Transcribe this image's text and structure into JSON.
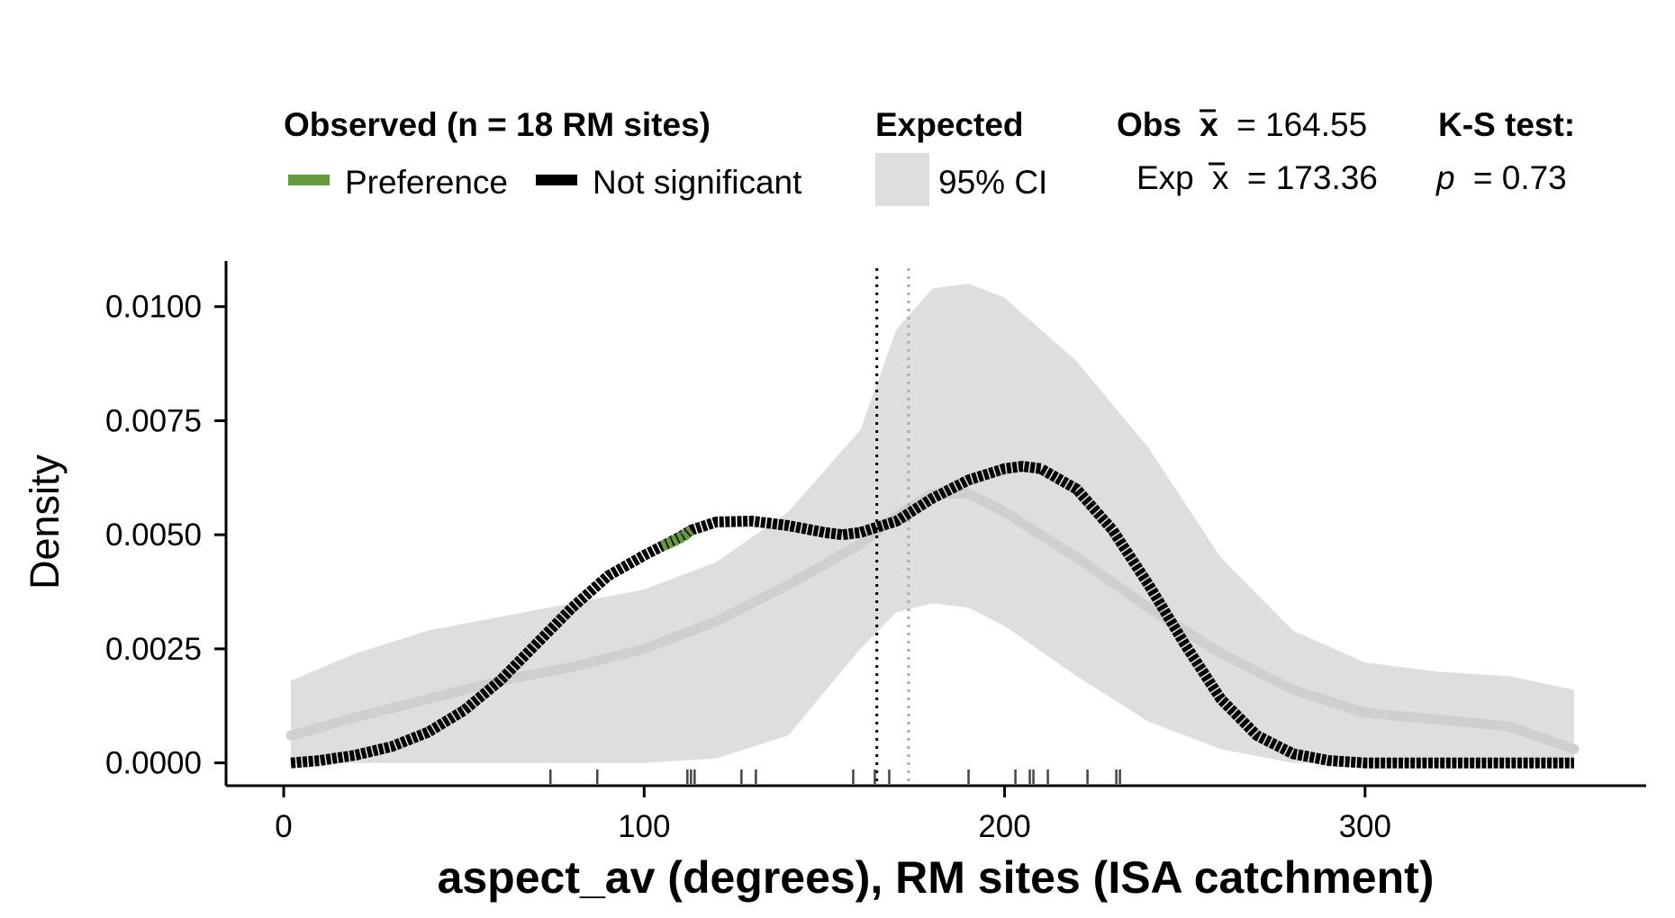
{
  "legend": {
    "observed_title": "Observed (n = 18 RM sites)",
    "preference_label": "Preference",
    "not_significant_label": "Not significant",
    "expected_title": "Expected",
    "ci_label": "95% CI",
    "obs_mean_prefix": "Obs",
    "obs_mean_value": "= 164.55",
    "exp_mean_prefix": "Exp",
    "exp_mean_value": "= 173.36",
    "ks_title": "K-S test:",
    "ks_p_symbol": "p",
    "ks_p_value": "= 0.73"
  },
  "chart_data": {
    "type": "line",
    "xlabel": "aspect_av (degrees), RM sites (ISA catchment)",
    "ylabel": "Density",
    "xlim": [
      -16,
      378
    ],
    "ylim": [
      -0.0005,
      0.011
    ],
    "x_ticks": [
      0,
      100,
      200,
      300
    ],
    "x_tick_labels": [
      "0",
      "100",
      "200",
      "300"
    ],
    "y_ticks": [
      0,
      0.0025,
      0.005,
      0.0075,
      0.01
    ],
    "y_tick_labels": [
      "0.0000",
      "0.0025",
      "0.0050",
      "0.0075",
      "0.0100"
    ],
    "grid": false,
    "legend_position": "top",
    "colors": {
      "observed": "#000000",
      "preference": "#66993a",
      "expected_mean": "#cfcfcf",
      "ci_band": "#dedede",
      "obs_mean_line": "#000000",
      "exp_mean_line": "#aaaaaa",
      "rug": "#444444"
    },
    "observed_mean": 164.55,
    "expected_mean": 173.36,
    "series": [
      {
        "name": "Observed",
        "role": "observed_density",
        "x": [
          2,
          10,
          20,
          30,
          40,
          50,
          60,
          70,
          80,
          90,
          100,
          105,
          110,
          113,
          120,
          130,
          140,
          150,
          155,
          160,
          170,
          180,
          190,
          200,
          205,
          210,
          220,
          230,
          240,
          250,
          260,
          270,
          280,
          290,
          300,
          310,
          320,
          330,
          340,
          350,
          358
        ],
        "y": [
          0.0,
          5e-05,
          0.00017,
          0.00036,
          0.00067,
          0.00115,
          0.0018,
          0.0026,
          0.0034,
          0.0041,
          0.00455,
          0.00475,
          0.00495,
          0.0051,
          0.00528,
          0.0053,
          0.0052,
          0.00505,
          0.005,
          0.00505,
          0.0053,
          0.0058,
          0.0062,
          0.00645,
          0.0065,
          0.00645,
          0.006,
          0.0051,
          0.0039,
          0.0026,
          0.0014,
          0.0006,
          0.0002,
          5e-05,
          0.0,
          0.0,
          0.0,
          0.0,
          0.0,
          0.0,
          0.0
        ]
      },
      {
        "name": "Preference",
        "role": "preference_segment",
        "x": [
          105,
          108,
          111,
          113
        ],
        "y": [
          0.00475,
          0.00485,
          0.00497,
          0.0051
        ]
      },
      {
        "name": "Expected",
        "role": "expected_mean_density",
        "x": [
          2,
          20,
          40,
          60,
          80,
          100,
          120,
          140,
          160,
          170,
          180,
          190,
          200,
          220,
          240,
          260,
          280,
          300,
          320,
          340,
          358
        ],
        "y": [
          0.0006,
          0.001,
          0.0014,
          0.0018,
          0.0021,
          0.0025,
          0.0031,
          0.0039,
          0.0048,
          0.0054,
          0.0059,
          0.0059,
          0.0055,
          0.0045,
          0.0034,
          0.0024,
          0.0016,
          0.0011,
          0.00095,
          0.0008,
          0.0003
        ]
      },
      {
        "name": "95% CI",
        "role": "expected_ci_band",
        "x": [
          2,
          20,
          40,
          60,
          80,
          100,
          120,
          140,
          160,
          170,
          180,
          190,
          200,
          220,
          240,
          260,
          280,
          300,
          320,
          340,
          358
        ],
        "upper": [
          0.0018,
          0.0024,
          0.0029,
          0.0032,
          0.0035,
          0.0038,
          0.0044,
          0.0055,
          0.0073,
          0.0095,
          0.0104,
          0.0105,
          0.0102,
          0.0088,
          0.0069,
          0.0045,
          0.0029,
          0.0022,
          0.002,
          0.0019,
          0.0016
        ],
        "lower": [
          0.0,
          0.0,
          0.0,
          0.0,
          0.0,
          0.0,
          0.0001,
          0.0006,
          0.0025,
          0.0033,
          0.0035,
          0.0034,
          0.003,
          0.0019,
          0.0009,
          0.0003,
          0.0,
          0.0,
          0.0,
          0.0,
          0.0
        ]
      }
    ],
    "rug_x": [
      74,
      87,
      112,
      113,
      114,
      127,
      131,
      158,
      164,
      168,
      190,
      203,
      207,
      208,
      212,
      223,
      231,
      232
    ]
  }
}
